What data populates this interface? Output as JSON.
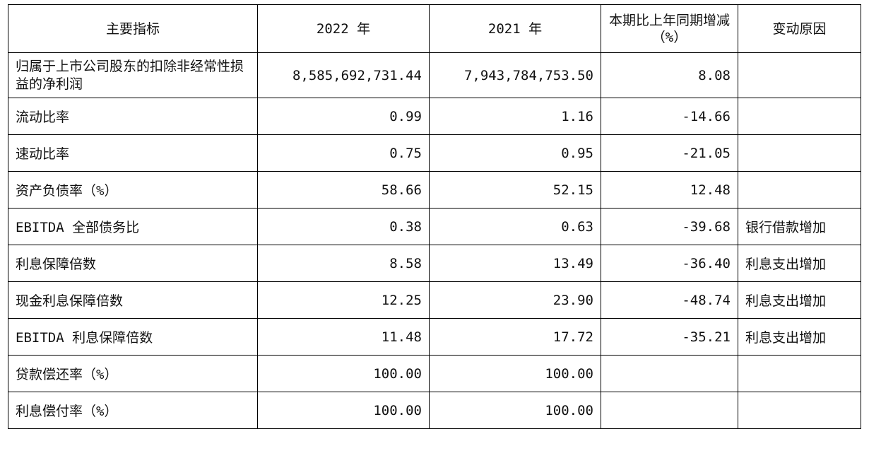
{
  "table": {
    "headers": [
      "主要指标",
      "2022 年",
      "2021 年",
      "本期比上年同期增减（%）",
      "变动原因"
    ],
    "rows": [
      {
        "indicator": "归属于上市公司股东的扣除非经常性损益的净利润",
        "y2022": "8,585,692,731.44",
        "y2021": "7,943,784,753.50",
        "change": "8.08",
        "reason": ""
      },
      {
        "indicator": "流动比率",
        "y2022": "0.99",
        "y2021": "1.16",
        "change": "-14.66",
        "reason": ""
      },
      {
        "indicator": "速动比率",
        "y2022": "0.75",
        "y2021": "0.95",
        "change": "-21.05",
        "reason": ""
      },
      {
        "indicator": "资产负债率（%）",
        "y2022": "58.66",
        "y2021": "52.15",
        "change": "12.48",
        "reason": ""
      },
      {
        "indicator": "EBITDA 全部债务比",
        "y2022": "0.38",
        "y2021": "0.63",
        "change": "-39.68",
        "reason": "银行借款增加"
      },
      {
        "indicator": "利息保障倍数",
        "y2022": "8.58",
        "y2021": "13.49",
        "change": "-36.40",
        "reason": "利息支出增加"
      },
      {
        "indicator": "现金利息保障倍数",
        "y2022": "12.25",
        "y2021": "23.90",
        "change": "-48.74",
        "reason": "利息支出增加"
      },
      {
        "indicator": "EBITDA 利息保障倍数",
        "y2022": "11.48",
        "y2021": "17.72",
        "change": "-35.21",
        "reason": "利息支出增加"
      },
      {
        "indicator": "贷款偿还率（%）",
        "y2022": "100.00",
        "y2021": "100.00",
        "change": "",
        "reason": ""
      },
      {
        "indicator": "利息偿付率（%）",
        "y2022": "100.00",
        "y2021": "100.00",
        "change": "",
        "reason": ""
      }
    ]
  }
}
